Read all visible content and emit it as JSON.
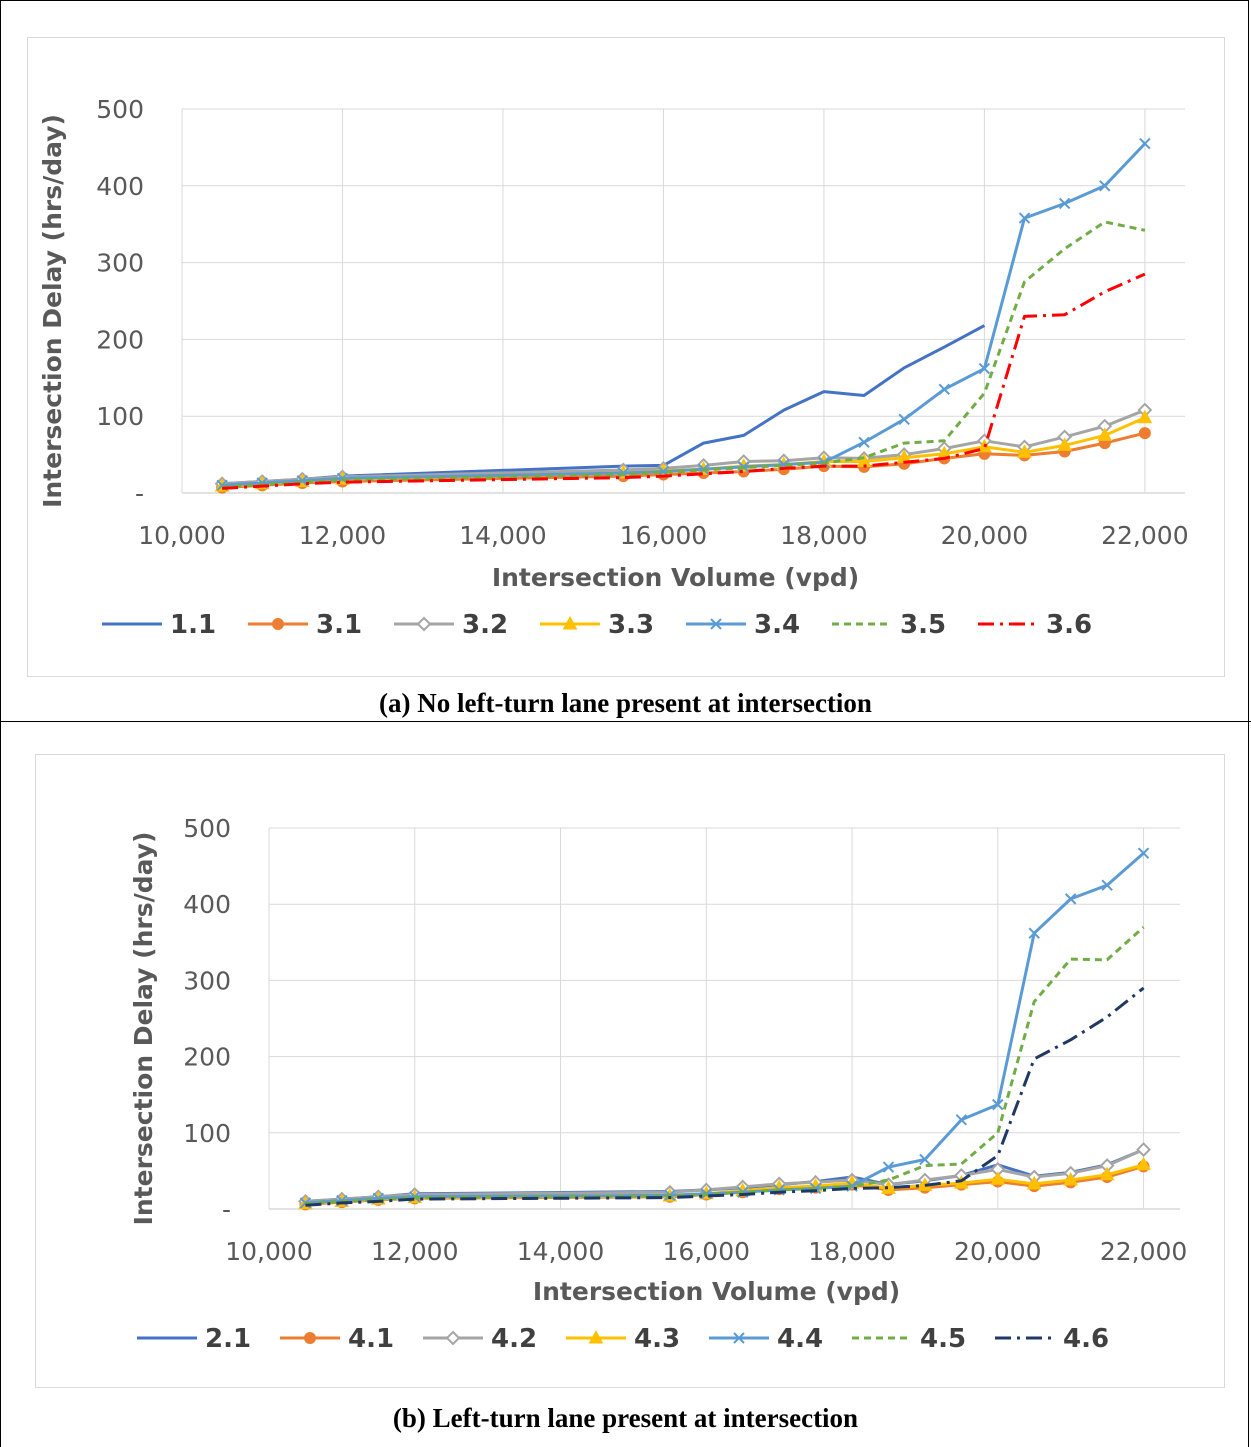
{
  "panels": [
    {
      "caption": "(a) No left-turn lane present at intersection",
      "chart_data": {
        "type": "line",
        "xlabel": "Intersection Volume (vpd)",
        "ylabel": "Intersection Delay (hrs/day)",
        "xlim": [
          10000,
          22500
        ],
        "ylim": [
          0,
          500
        ],
        "xticks": [
          10000,
          12000,
          14000,
          16000,
          18000,
          20000,
          22000
        ],
        "xtick_labels": [
          "10,000",
          "12,000",
          "14,000",
          "16,000",
          "18,000",
          "20,000",
          "22,000"
        ],
        "yticks": [
          0,
          100,
          200,
          300,
          400,
          500
        ],
        "ytick_labels": [
          "-",
          "100",
          "200",
          "300",
          "400",
          "500"
        ],
        "grid": true,
        "legend_position": "bottom",
        "series": [
          {
            "name": "1.1",
            "color": "#4472c4",
            "style": "solid",
            "marker": "none",
            "x": [
              10500,
              11000,
              11500,
              12000,
              15500,
              16000,
              16500,
              17000,
              17500,
              18000,
              18500,
              19000,
              19500,
              20000
            ],
            "y": [
              12,
              15,
              18,
              22,
              35,
              36,
              65,
              75,
              108,
              132,
              127,
              163,
              190,
              218
            ]
          },
          {
            "name": "3.1",
            "color": "#ed7d31",
            "style": "solid",
            "marker": "circle",
            "x": [
              10500,
              11000,
              11500,
              12000,
              15500,
              16000,
              16500,
              17000,
              17500,
              18000,
              18500,
              19000,
              19500,
              20000,
              20500,
              21000,
              21500,
              22000
            ],
            "y": [
              7,
              10,
              13,
              15,
              22,
              24,
              26,
              28,
              31,
              35,
              34,
              38,
              45,
              51,
              49,
              54,
              65,
              78
            ]
          },
          {
            "name": "3.2",
            "color": "#a5a5a5",
            "style": "solid",
            "marker": "diamond",
            "x": [
              10500,
              11000,
              11500,
              12000,
              15500,
              16000,
              16500,
              17000,
              17500,
              18000,
              18500,
              19000,
              19500,
              20000,
              20500,
              21000,
              21500,
              22000
            ],
            "y": [
              12,
              15,
              18,
              21,
              30,
              32,
              36,
              41,
              42,
              46,
              45,
              50,
              58,
              68,
              60,
              73,
              87,
              108
            ]
          },
          {
            "name": "3.3",
            "color": "#ffc000",
            "style": "solid",
            "marker": "triangle",
            "x": [
              10500,
              11000,
              11500,
              12000,
              15500,
              16000,
              16500,
              17000,
              17500,
              18000,
              18500,
              19000,
              19500,
              20000,
              20500,
              21000,
              21500,
              22000
            ],
            "y": [
              9,
              12,
              15,
              18,
              26,
              29,
              31,
              35,
              37,
              41,
              41,
              46,
              51,
              60,
              53,
              62,
              75,
              98
            ]
          },
          {
            "name": "3.4",
            "color": "#5b9bd5",
            "style": "solid",
            "marker": "x",
            "x": [
              10500,
              11000,
              11500,
              12000,
              15500,
              16000,
              16500,
              17000,
              17500,
              18000,
              18500,
              19000,
              19500,
              20000,
              20500,
              21000,
              21500,
              22000
            ],
            "y": [
              10,
              13,
              16,
              19,
              26,
              28,
              31,
              34,
              37,
              40,
              66,
              96,
              135,
              162,
              358,
              377,
              400,
              455
            ]
          },
          {
            "name": "3.5",
            "color": "#70ad47",
            "style": "dashed",
            "marker": "none",
            "x": [
              10500,
              11000,
              11500,
              12000,
              15500,
              16000,
              16500,
              17000,
              17500,
              18000,
              18500,
              19000,
              19500,
              20000,
              20500,
              21000,
              21500,
              22000
            ],
            "y": [
              8,
              11,
              14,
              17,
              24,
              27,
              30,
              33,
              36,
              39,
              46,
              65,
              68,
              130,
              275,
              318,
              353,
              342
            ]
          },
          {
            "name": "3.6",
            "color": "#ff0000",
            "style": "dashdot",
            "marker": "none",
            "x": [
              10500,
              11000,
              11500,
              12000,
              15500,
              16000,
              16500,
              17000,
              17500,
              18000,
              18500,
              19000,
              19500,
              20000,
              20500,
              21000,
              21500,
              22000
            ],
            "y": [
              6,
              9,
              12,
              14,
              20,
              22,
              25,
              28,
              32,
              35,
              35,
              40,
              45,
              58,
              230,
              232,
              262,
              285
            ]
          }
        ]
      }
    },
    {
      "caption": "(b) Left-turn lane present at intersection",
      "chart_data": {
        "type": "line",
        "xlabel": "Intersection Volume (vpd)",
        "ylabel": "Intersection Delay (hrs/day)",
        "xlim": [
          10000,
          22500
        ],
        "ylim": [
          0,
          500
        ],
        "xticks": [
          10000,
          12000,
          14000,
          16000,
          18000,
          20000,
          22000
        ],
        "xtick_labels": [
          "10,000",
          "12,000",
          "14,000",
          "16,000",
          "18,000",
          "20,000",
          "22,000"
        ],
        "yticks": [
          0,
          100,
          200,
          300,
          400,
          500
        ],
        "ytick_labels": [
          "-",
          "100",
          "200",
          "300",
          "400",
          "500"
        ],
        "grid": true,
        "legend_position": "bottom",
        "series": [
          {
            "name": "2.1",
            "color": "#4472c4",
            "style": "solid",
            "marker": "none",
            "x": [
              10500,
              11000,
              11500,
              12000,
              15500,
              16000,
              16500,
              17000,
              17500,
              18000,
              18500,
              19000,
              19500,
              20000,
              20500,
              21000,
              21500,
              22000
            ],
            "y": [
              10,
              13,
              16,
              20,
              23,
              25,
              28,
              32,
              36,
              42,
              32,
              37,
              44,
              58,
              43,
              48,
              58,
              78
            ]
          },
          {
            "name": "4.1",
            "color": "#ed7d31",
            "style": "solid",
            "marker": "circle",
            "x": [
              10500,
              11000,
              11500,
              12000,
              15500,
              16000,
              16500,
              17000,
              17500,
              18000,
              18500,
              19000,
              19500,
              20000,
              20500,
              21000,
              21500,
              22000
            ],
            "y": [
              6,
              9,
              12,
              14,
              16,
              19,
              22,
              26,
              28,
              32,
              25,
              28,
              32,
              36,
              30,
              35,
              42,
              56
            ]
          },
          {
            "name": "4.2",
            "color": "#a5a5a5",
            "style": "solid",
            "marker": "diamond",
            "x": [
              10500,
              11000,
              11500,
              12000,
              15500,
              16000,
              16500,
              17000,
              17500,
              18000,
              18500,
              19000,
              19500,
              20000,
              20500,
              21000,
              21500,
              22000
            ],
            "y": [
              10,
              13,
              16,
              19,
              22,
              25,
              29,
              33,
              35,
              38,
              32,
              38,
              44,
              52,
              42,
              47,
              57,
              78
            ]
          },
          {
            "name": "4.3",
            "color": "#ffc000",
            "style": "solid",
            "marker": "triangle",
            "x": [
              10500,
              11000,
              11500,
              12000,
              15500,
              16000,
              16500,
              17000,
              17500,
              18000,
              18500,
              19000,
              19500,
              20000,
              20500,
              21000,
              21500,
              22000
            ],
            "y": [
              7,
              10,
              13,
              15,
              17,
              20,
              24,
              28,
              30,
              34,
              27,
              31,
              34,
              39,
              33,
              38,
              45,
              58
            ]
          },
          {
            "name": "4.4",
            "color": "#5b9bd5",
            "style": "solid",
            "marker": "x",
            "x": [
              10500,
              11000,
              11500,
              12000,
              15500,
              16000,
              16500,
              17000,
              17500,
              18000,
              18500,
              19000,
              19500,
              20000,
              20500,
              21000,
              21500,
              22000
            ],
            "y": [
              8,
              11,
              14,
              16,
              18,
              20,
              22,
              25,
              27,
              30,
              55,
              65,
              117,
              137,
              362,
              407,
              425,
              467
            ]
          },
          {
            "name": "4.5",
            "color": "#70ad47",
            "style": "dashed",
            "marker": "none",
            "x": [
              10500,
              11000,
              11500,
              12000,
              15500,
              16000,
              16500,
              17000,
              17500,
              18000,
              18500,
              19000,
              19500,
              20000,
              20500,
              21000,
              21500,
              22000
            ],
            "y": [
              7,
              10,
              12,
              15,
              17,
              19,
              22,
              25,
              27,
              30,
              38,
              57,
              59,
              100,
              272,
              328,
              327,
              370
            ]
          },
          {
            "name": "4.6",
            "color": "#203864",
            "style": "dashdot",
            "marker": "none",
            "x": [
              10500,
              11000,
              11500,
              12000,
              15500,
              16000,
              16500,
              17000,
              17500,
              18000,
              18500,
              19000,
              19500,
              20000,
              20500,
              21000,
              21500,
              22000
            ],
            "y": [
              5,
              8,
              10,
              13,
              15,
              17,
              19,
              22,
              24,
              27,
              28,
              31,
              37,
              70,
              197,
              222,
              252,
              290
            ]
          }
        ]
      }
    }
  ]
}
